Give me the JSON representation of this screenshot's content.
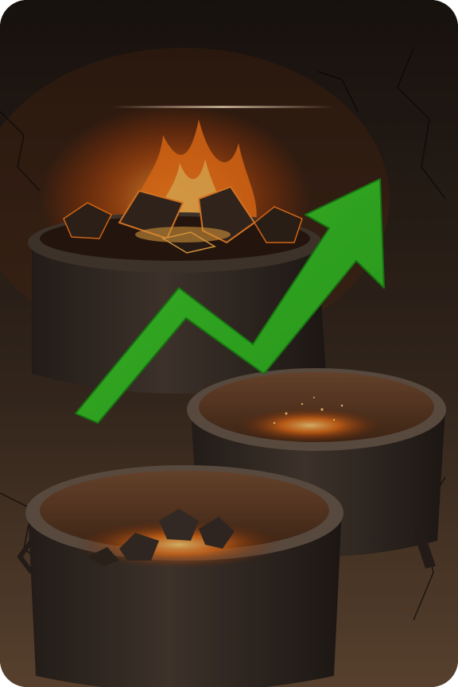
{
  "scene": {
    "description_text": "",
    "colors": {
      "background": "#0f0c0a",
      "wall": "#2a2019",
      "floor": "#5a4330",
      "pot": "#3a2f28",
      "pot_rim": "#6b5a4c",
      "fire": "#ff7a1a",
      "ember": "#ffb347",
      "arrow": "#3fcf2c",
      "arrow_edge": "#1f8a16",
      "highlight_line": "#f2d6b8"
    },
    "icons": [
      "cauldron-with-coals",
      "cauldron-with-embers",
      "cauldron-with-embers",
      "trend-up-arrow"
    ]
  }
}
